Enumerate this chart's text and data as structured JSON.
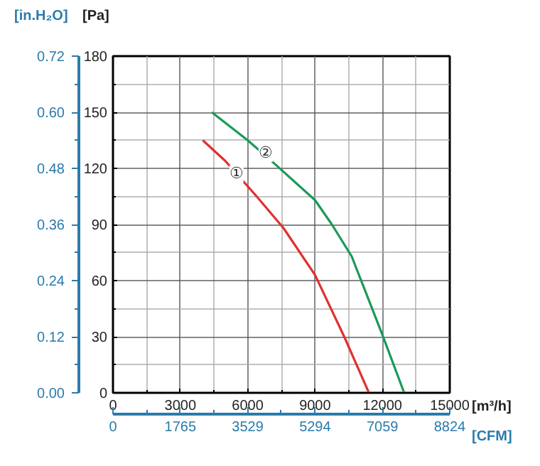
{
  "chart_data": {
    "type": "line",
    "xlabel": "[m³/h]",
    "ylabel": "[Pa]",
    "y2label": "[in.H₂O]",
    "x2label": "[CFM]",
    "series": [
      {
        "color": "#e03030",
        "x": [
          4000,
          5000,
          6400,
          7600,
          9000,
          10300,
          11400
        ],
        "values": [
          135,
          124,
          105,
          88,
          63,
          30,
          0
        ]
      },
      {
        "color": "#1a9a5a",
        "x": [
          4400,
          6000,
          7150,
          9000,
          9750,
          10630,
          12000,
          12970
        ],
        "values": [
          150,
          135,
          123,
          103,
          90,
          73,
          31,
          0
        ]
      }
    ],
    "annotations": [
      {
        "text": "①",
        "x": 5500,
        "y": 117
      },
      {
        "text": "②",
        "x": 6800,
        "y": 128
      }
    ],
    "xlim": [
      0,
      15000
    ],
    "xticks": [
      0,
      3000,
      6000,
      9000,
      12000,
      15000
    ],
    "ylim": [
      0,
      180
    ],
    "yticks": [
      0,
      30,
      60,
      90,
      120,
      150,
      180
    ],
    "y2lim": [
      0,
      0.72
    ],
    "y2ticks": [
      {
        "value": 0,
        "label": "0.00"
      },
      {
        "value": 0.12,
        "label": "0.12"
      },
      {
        "value": 0.24,
        "label": "0.24"
      },
      {
        "value": 0.36,
        "label": "0.36"
      },
      {
        "value": 0.48,
        "label": "0.48"
      },
      {
        "value": 0.6,
        "label": "0.60"
      },
      {
        "value": 0.72,
        "label": "0.72"
      }
    ],
    "x2lim": [
      0,
      8824
    ],
    "x2ticks": [
      0,
      1765,
      3529,
      5294,
      7059,
      8824
    ],
    "grid": true,
    "line_style": "solid"
  }
}
